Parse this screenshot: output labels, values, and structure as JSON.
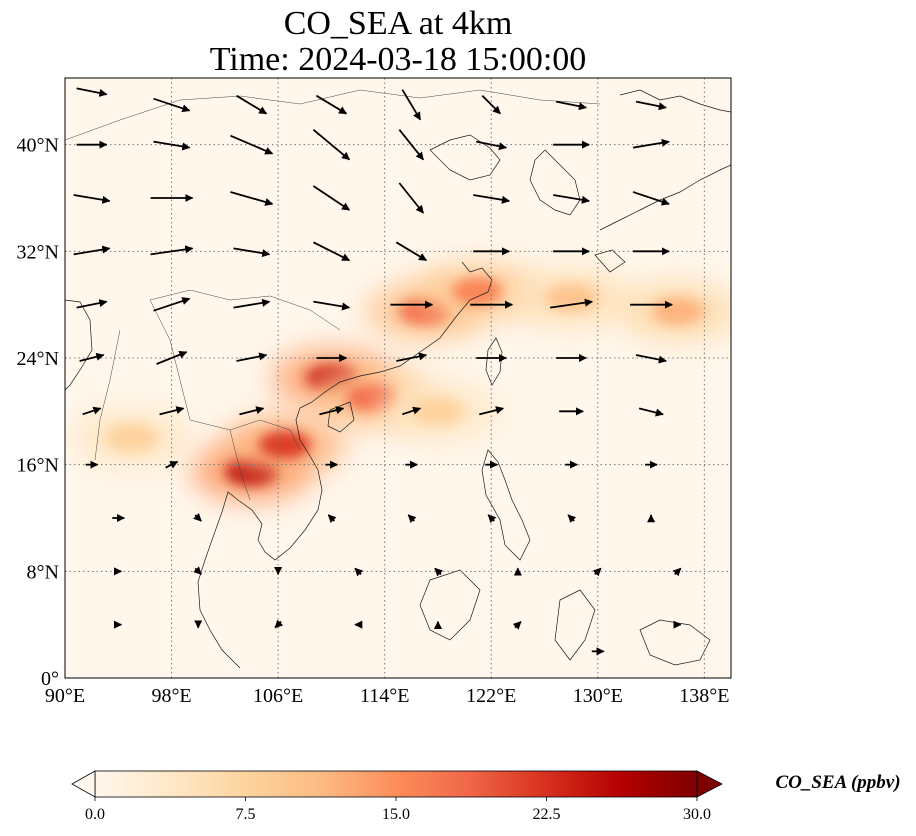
{
  "chart_data": {
    "type": "heatmap",
    "title_line1": "CO_SEA at 4km",
    "title_line2": "Time: 2024-03-18 15:00:00",
    "x_ticks": [
      "90°E",
      "98°E",
      "106°E",
      "114°E",
      "122°E",
      "130°E",
      "138°E"
    ],
    "y_ticks": [
      "0°",
      "8°N",
      "16°N",
      "24°N",
      "32°N",
      "40°N"
    ],
    "x_tick_values": [
      90,
      98,
      106,
      114,
      122,
      130,
      138
    ],
    "y_tick_values": [
      0,
      8,
      16,
      24,
      32,
      40
    ],
    "xlim": [
      90,
      140
    ],
    "ylim": [
      0,
      45
    ],
    "grid": "dotted",
    "colorbar": {
      "label": "CO_SEA (ppbv)",
      "ticks": [
        "0.0",
        "7.5",
        "15.0",
        "22.5",
        "30.0"
      ],
      "tick_values": [
        0,
        7.5,
        15,
        22.5,
        30
      ],
      "range": [
        0,
        30
      ],
      "extend": "both",
      "colormap": "OrRd",
      "colors": [
        "#fff7ec",
        "#fee8c8",
        "#fdd49e",
        "#fdbb84",
        "#fc8d59",
        "#ef6548",
        "#d7301f",
        "#b30000",
        "#7f0000"
      ]
    },
    "plume_values": [
      {
        "lon": 104,
        "lat": 15.5,
        "value": 26
      },
      {
        "lon": 106.5,
        "lat": 17.5,
        "value": 22
      },
      {
        "lon": 110,
        "lat": 22.5,
        "value": 24
      },
      {
        "lon": 113,
        "lat": 21,
        "value": 18
      },
      {
        "lon": 117,
        "lat": 27.5,
        "value": 18
      },
      {
        "lon": 121,
        "lat": 29,
        "value": 16
      },
      {
        "lon": 128,
        "lat": 28.5,
        "value": 10
      },
      {
        "lon": 136,
        "lat": 27.5,
        "value": 12
      },
      {
        "lon": 95,
        "lat": 18,
        "value": 8
      },
      {
        "lon": 118,
        "lat": 20,
        "value": 8
      }
    ],
    "wind_vectors": [
      {
        "lon": 92,
        "lat": 44,
        "u": 5,
        "v": -1
      },
      {
        "lon": 98,
        "lat": 43,
        "u": 6,
        "v": -2
      },
      {
        "lon": 104,
        "lat": 43,
        "u": 5,
        "v": -3
      },
      {
        "lon": 110,
        "lat": 43,
        "u": 5,
        "v": -3
      },
      {
        "lon": 116,
        "lat": 43,
        "u": 3,
        "v": -5
      },
      {
        "lon": 122,
        "lat": 43,
        "u": 3,
        "v": -3
      },
      {
        "lon": 128,
        "lat": 43,
        "u": 5,
        "v": -1
      },
      {
        "lon": 134,
        "lat": 43,
        "u": 5,
        "v": -1
      },
      {
        "lon": 92,
        "lat": 40,
        "u": 5,
        "v": 0
      },
      {
        "lon": 98,
        "lat": 40,
        "u": 6,
        "v": -1
      },
      {
        "lon": 104,
        "lat": 40,
        "u": 7,
        "v": -3
      },
      {
        "lon": 110,
        "lat": 40,
        "u": 6,
        "v": -5
      },
      {
        "lon": 116,
        "lat": 40,
        "u": 4,
        "v": -5
      },
      {
        "lon": 122,
        "lat": 40,
        "u": 5,
        "v": -1
      },
      {
        "lon": 128,
        "lat": 40,
        "u": 6,
        "v": 0
      },
      {
        "lon": 134,
        "lat": 40,
        "u": 6,
        "v": 1
      },
      {
        "lon": 92,
        "lat": 36,
        "u": 6,
        "v": -1
      },
      {
        "lon": 98,
        "lat": 36,
        "u": 7,
        "v": 0
      },
      {
        "lon": 104,
        "lat": 36,
        "u": 7,
        "v": -2
      },
      {
        "lon": 110,
        "lat": 36,
        "u": 6,
        "v": -4
      },
      {
        "lon": 116,
        "lat": 36,
        "u": 4,
        "v": -5
      },
      {
        "lon": 122,
        "lat": 36,
        "u": 6,
        "v": -1
      },
      {
        "lon": 128,
        "lat": 36,
        "u": 6,
        "v": -1
      },
      {
        "lon": 134,
        "lat": 36,
        "u": 6,
        "v": -2
      },
      {
        "lon": 92,
        "lat": 32,
        "u": 6,
        "v": 1
      },
      {
        "lon": 98,
        "lat": 32,
        "u": 7,
        "v": 1
      },
      {
        "lon": 104,
        "lat": 32,
        "u": 6,
        "v": -1
      },
      {
        "lon": 110,
        "lat": 32,
        "u": 6,
        "v": -3
      },
      {
        "lon": 116,
        "lat": 32,
        "u": 5,
        "v": -3
      },
      {
        "lon": 122,
        "lat": 32,
        "u": 6,
        "v": 0
      },
      {
        "lon": 128,
        "lat": 32,
        "u": 6,
        "v": 0
      },
      {
        "lon": 134,
        "lat": 32,
        "u": 6,
        "v": 0
      },
      {
        "lon": 92,
        "lat": 28,
        "u": 5,
        "v": 1
      },
      {
        "lon": 98,
        "lat": 28,
        "u": 6,
        "v": 2
      },
      {
        "lon": 104,
        "lat": 28,
        "u": 6,
        "v": 1
      },
      {
        "lon": 110,
        "lat": 28,
        "u": 6,
        "v": -1
      },
      {
        "lon": 116,
        "lat": 28,
        "u": 7,
        "v": 0
      },
      {
        "lon": 122,
        "lat": 28,
        "u": 7,
        "v": 0
      },
      {
        "lon": 128,
        "lat": 28,
        "u": 7,
        "v": 1
      },
      {
        "lon": 134,
        "lat": 28,
        "u": 7,
        "v": 0
      },
      {
        "lon": 92,
        "lat": 24,
        "u": 4,
        "v": 1
      },
      {
        "lon": 98,
        "lat": 24,
        "u": 5,
        "v": 2
      },
      {
        "lon": 104,
        "lat": 24,
        "u": 5,
        "v": 1
      },
      {
        "lon": 110,
        "lat": 24,
        "u": 5,
        "v": 0
      },
      {
        "lon": 116,
        "lat": 24,
        "u": 5,
        "v": 1
      },
      {
        "lon": 122,
        "lat": 24,
        "u": 5,
        "v": 0
      },
      {
        "lon": 128,
        "lat": 24,
        "u": 5,
        "v": 0
      },
      {
        "lon": 134,
        "lat": 24,
        "u": 5,
        "v": -1
      },
      {
        "lon": 92,
        "lat": 20,
        "u": 3,
        "v": 1
      },
      {
        "lon": 98,
        "lat": 20,
        "u": 4,
        "v": 1
      },
      {
        "lon": 104,
        "lat": 20,
        "u": 4,
        "v": 1
      },
      {
        "lon": 110,
        "lat": 20,
        "u": 4,
        "v": 1
      },
      {
        "lon": 116,
        "lat": 20,
        "u": 3,
        "v": 1
      },
      {
        "lon": 122,
        "lat": 20,
        "u": 4,
        "v": 1
      },
      {
        "lon": 128,
        "lat": 20,
        "u": 4,
        "v": 0
      },
      {
        "lon": 134,
        "lat": 20,
        "u": 4,
        "v": -1
      },
      {
        "lon": 92,
        "lat": 16,
        "u": 2,
        "v": 0
      },
      {
        "lon": 98,
        "lat": 16,
        "u": 2,
        "v": 1
      },
      {
        "lon": 110,
        "lat": 16,
        "u": 2,
        "v": 0
      },
      {
        "lon": 116,
        "lat": 16,
        "u": 2,
        "v": 0
      },
      {
        "lon": 122,
        "lat": 16,
        "u": 2,
        "v": 0
      },
      {
        "lon": 128,
        "lat": 16,
        "u": 2,
        "v": 0
      },
      {
        "lon": 134,
        "lat": 16,
        "u": 2,
        "v": 0
      },
      {
        "lon": 94,
        "lat": 12,
        "u": 2,
        "v": 0
      },
      {
        "lon": 100,
        "lat": 12,
        "u": 1,
        "v": -1
      },
      {
        "lon": 110,
        "lat": 12,
        "u": -1,
        "v": 1
      },
      {
        "lon": 116,
        "lat": 12,
        "u": -1,
        "v": 1
      },
      {
        "lon": 122,
        "lat": 12,
        "u": -1,
        "v": 1
      },
      {
        "lon": 128,
        "lat": 12,
        "u": -1,
        "v": 1
      },
      {
        "lon": 134,
        "lat": 12,
        "u": 0,
        "v": 1
      },
      {
        "lon": 94,
        "lat": 8,
        "u": 1,
        "v": 0
      },
      {
        "lon": 100,
        "lat": 8,
        "u": 1,
        "v": -1
      },
      {
        "lon": 106,
        "lat": 8,
        "u": 0,
        "v": -1
      },
      {
        "lon": 112,
        "lat": 8,
        "u": -1,
        "v": 1
      },
      {
        "lon": 118,
        "lat": 8,
        "u": -1,
        "v": 1
      },
      {
        "lon": 124,
        "lat": 8,
        "u": 0,
        "v": 1
      },
      {
        "lon": 130,
        "lat": 8,
        "u": 1,
        "v": 1
      },
      {
        "lon": 136,
        "lat": 8,
        "u": 1,
        "v": 1
      },
      {
        "lon": 94,
        "lat": 4,
        "u": 1,
        "v": 0
      },
      {
        "lon": 100,
        "lat": 4,
        "u": 0,
        "v": -1
      },
      {
        "lon": 106,
        "lat": 4,
        "u": -1,
        "v": -1
      },
      {
        "lon": 112,
        "lat": 4,
        "u": -1,
        "v": 0
      },
      {
        "lon": 118,
        "lat": 4,
        "u": 0,
        "v": 1
      },
      {
        "lon": 124,
        "lat": 4,
        "u": 1,
        "v": 1
      },
      {
        "lon": 130,
        "lat": 2,
        "u": 2,
        "v": 0
      },
      {
        "lon": 136,
        "lat": 4,
        "u": 1,
        "v": 0
      }
    ]
  }
}
